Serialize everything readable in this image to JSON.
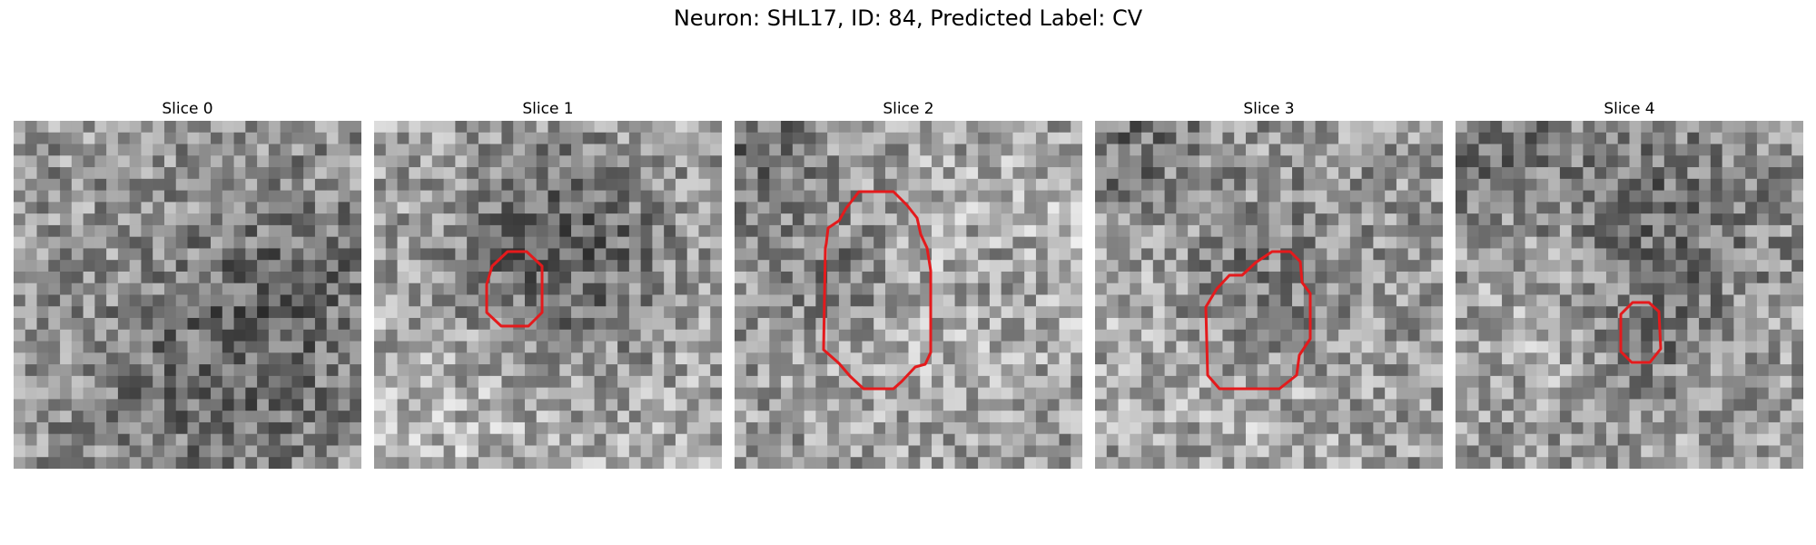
{
  "figure": {
    "title": "Neuron: SHL17, ID: 84, Predicted Label: CV",
    "roi_color": "#e41a1c",
    "panels": [
      {
        "label": "Slice 0",
        "has_contour": false
      },
      {
        "label": "Slice 1",
        "has_contour": true
      },
      {
        "label": "Slice 2",
        "has_contour": true
      },
      {
        "label": "Slice 3",
        "has_contour": true
      },
      {
        "label": "Slice 4",
        "has_contour": true
      }
    ]
  }
}
